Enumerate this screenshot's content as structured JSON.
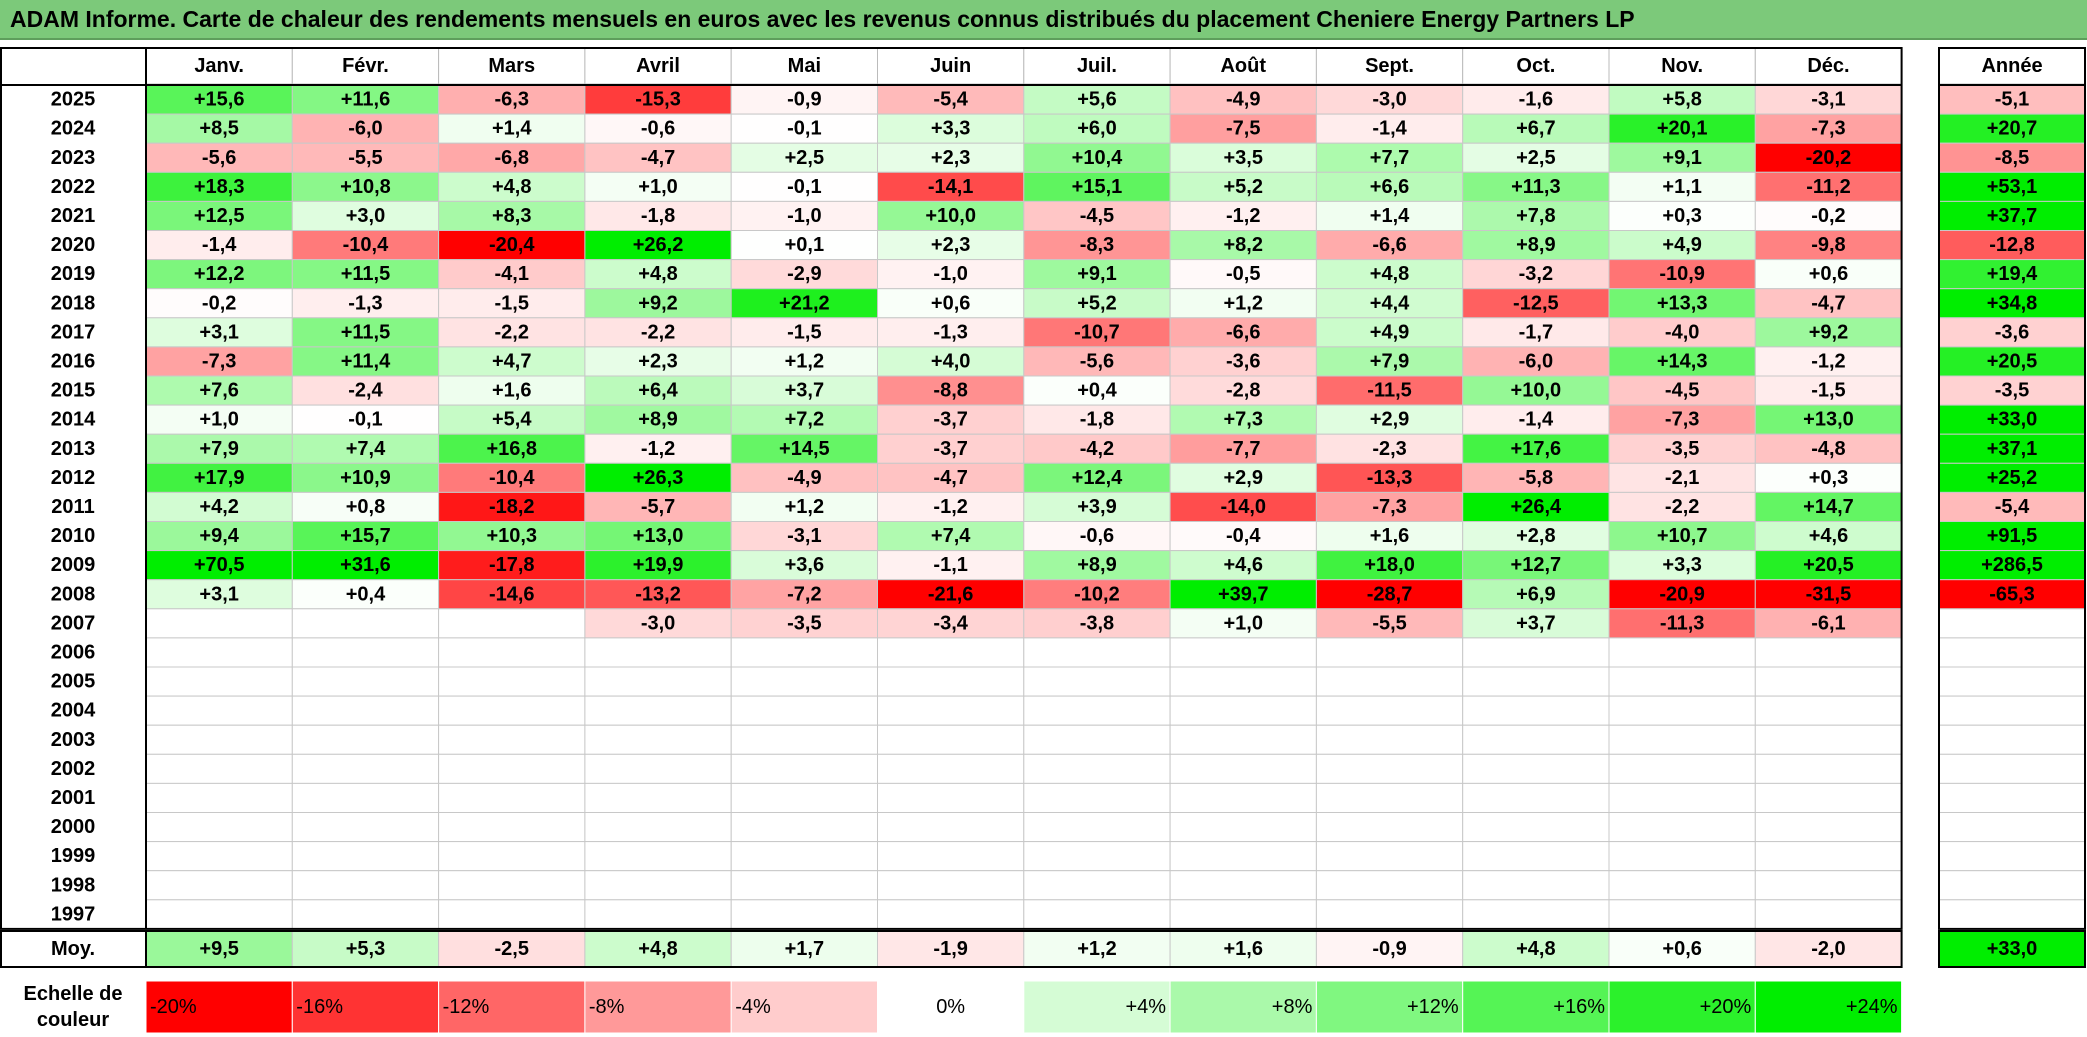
{
  "title": "ADAM Informe. Carte de chaleur des rendements mensuels en euros avec les revenus connus distribués du placement Cheniere Energy Partners LP",
  "chart_data": {
    "type": "heatmap",
    "title": "ADAM Informe. Carte de chaleur des rendements mensuels en euros avec les revenus connus distribués du placement Cheniere Energy Partners LP",
    "columns": [
      "Janv.",
      "Févr.",
      "Mars",
      "Avril",
      "Mai",
      "Juin",
      "Juil.",
      "Août",
      "Sept.",
      "Oct.",
      "Nov.",
      "Déc."
    ],
    "annual_header": "Année",
    "rows": [
      {
        "year": "2025",
        "values": [
          "+15,6",
          "+11,6",
          "-6,3",
          "-15,3",
          "-0,9",
          "-5,4",
          "+5,6",
          "-4,9",
          "-3,0",
          "-1,6",
          "+5,8",
          "-3,1"
        ],
        "annual": "-5,1"
      },
      {
        "year": "2024",
        "values": [
          "+8,5",
          "-6,0",
          "+1,4",
          "-0,6",
          "-0,1",
          "+3,3",
          "+6,0",
          "-7,5",
          "-1,4",
          "+6,7",
          "+20,1",
          "-7,3"
        ],
        "annual": "+20,7"
      },
      {
        "year": "2023",
        "values": [
          "-5,6",
          "-5,5",
          "-6,8",
          "-4,7",
          "+2,5",
          "+2,3",
          "+10,4",
          "+3,5",
          "+7,7",
          "+2,5",
          "+9,1",
          "-20,2"
        ],
        "annual": "-8,5"
      },
      {
        "year": "2022",
        "values": [
          "+18,3",
          "+10,8",
          "+4,8",
          "+1,0",
          "-0,1",
          "-14,1",
          "+15,1",
          "+5,2",
          "+6,6",
          "+11,3",
          "+1,1",
          "-11,2"
        ],
        "annual": "+53,1"
      },
      {
        "year": "2021",
        "values": [
          "+12,5",
          "+3,0",
          "+8,3",
          "-1,8",
          "-1,0",
          "+10,0",
          "-4,5",
          "-1,2",
          "+1,4",
          "+7,8",
          "+0,3",
          "-0,2"
        ],
        "annual": "+37,7"
      },
      {
        "year": "2020",
        "values": [
          "-1,4",
          "-10,4",
          "-20,4",
          "+26,2",
          "+0,1",
          "+2,3",
          "-8,3",
          "+8,2",
          "-6,6",
          "+8,9",
          "+4,9",
          "-9,8"
        ],
        "annual": "-12,8"
      },
      {
        "year": "2019",
        "values": [
          "+12,2",
          "+11,5",
          "-4,1",
          "+4,8",
          "-2,9",
          "-1,0",
          "+9,1",
          "-0,5",
          "+4,8",
          "-3,2",
          "-10,9",
          "+0,6"
        ],
        "annual": "+19,4"
      },
      {
        "year": "2018",
        "values": [
          "-0,2",
          "-1,3",
          "-1,5",
          "+9,2",
          "+21,2",
          "+0,6",
          "+5,2",
          "+1,2",
          "+4,4",
          "-12,5",
          "+13,3",
          "-4,7"
        ],
        "annual": "+34,8"
      },
      {
        "year": "2017",
        "values": [
          "+3,1",
          "+11,5",
          "-2,2",
          "-2,2",
          "-1,5",
          "-1,3",
          "-10,7",
          "-6,6",
          "+4,9",
          "-1,7",
          "-4,0",
          "+9,2"
        ],
        "annual": "-3,6"
      },
      {
        "year": "2016",
        "values": [
          "-7,3",
          "+11,4",
          "+4,7",
          "+2,3",
          "+1,2",
          "+4,0",
          "-5,6",
          "-3,6",
          "+7,9",
          "-6,0",
          "+14,3",
          "-1,2"
        ],
        "annual": "+20,5"
      },
      {
        "year": "2015",
        "values": [
          "+7,6",
          "-2,4",
          "+1,6",
          "+6,4",
          "+3,7",
          "-8,8",
          "+0,4",
          "-2,8",
          "-11,5",
          "+10,0",
          "-4,5",
          "-1,5"
        ],
        "annual": "-3,5"
      },
      {
        "year": "2014",
        "values": [
          "+1,0",
          "-0,1",
          "+5,4",
          "+8,9",
          "+7,2",
          "-3,7",
          "-1,8",
          "+7,3",
          "+2,9",
          "-1,4",
          "-7,3",
          "+13,0"
        ],
        "annual": "+33,0"
      },
      {
        "year": "2013",
        "values": [
          "+7,9",
          "+7,4",
          "+16,8",
          "-1,2",
          "+14,5",
          "-3,7",
          "-4,2",
          "-7,7",
          "-2,3",
          "+17,6",
          "-3,5",
          "-4,8"
        ],
        "annual": "+37,1"
      },
      {
        "year": "2012",
        "values": [
          "+17,9",
          "+10,9",
          "-10,4",
          "+26,3",
          "-4,9",
          "-4,7",
          "+12,4",
          "+2,9",
          "-13,3",
          "-5,8",
          "-2,1",
          "+0,3"
        ],
        "annual": "+25,2"
      },
      {
        "year": "2011",
        "values": [
          "+4,2",
          "+0,8",
          "-18,2",
          "-5,7",
          "+1,2",
          "-1,2",
          "+3,9",
          "-14,0",
          "-7,3",
          "+26,4",
          "-2,2",
          "+14,7"
        ],
        "annual": "-5,4"
      },
      {
        "year": "2010",
        "values": [
          "+9,4",
          "+15,7",
          "+10,3",
          "+13,0",
          "-3,1",
          "+7,4",
          "-0,6",
          "-0,4",
          "+1,6",
          "+2,8",
          "+10,7",
          "+4,6"
        ],
        "annual": "+91,5"
      },
      {
        "year": "2009",
        "values": [
          "+70,5",
          "+31,6",
          "-17,8",
          "+19,9",
          "+3,6",
          "-1,1",
          "+8,9",
          "+4,6",
          "+18,0",
          "+12,7",
          "+3,3",
          "+20,5"
        ],
        "annual": "+286,5"
      },
      {
        "year": "2008",
        "values": [
          "+3,1",
          "+0,4",
          "-14,6",
          "-13,2",
          "-7,2",
          "-21,6",
          "-10,2",
          "+39,7",
          "-28,7",
          "+6,9",
          "-20,9",
          "-31,5"
        ],
        "annual": "-65,3"
      },
      {
        "year": "2007",
        "values": [
          "",
          "",
          "",
          "-3,0",
          "-3,5",
          "-3,4",
          "-3,8",
          "+1,0",
          "-5,5",
          "+3,7",
          "-11,3",
          "-6,1"
        ],
        "annual": ""
      },
      {
        "year": "2006",
        "values": [
          "",
          "",
          "",
          "",
          "",
          "",
          "",
          "",
          "",
          "",
          "",
          ""
        ],
        "annual": ""
      },
      {
        "year": "2005",
        "values": [
          "",
          "",
          "",
          "",
          "",
          "",
          "",
          "",
          "",
          "",
          "",
          ""
        ],
        "annual": ""
      },
      {
        "year": "2004",
        "values": [
          "",
          "",
          "",
          "",
          "",
          "",
          "",
          "",
          "",
          "",
          "",
          ""
        ],
        "annual": ""
      },
      {
        "year": "2003",
        "values": [
          "",
          "",
          "",
          "",
          "",
          "",
          "",
          "",
          "",
          "",
          "",
          ""
        ],
        "annual": ""
      },
      {
        "year": "2002",
        "values": [
          "",
          "",
          "",
          "",
          "",
          "",
          "",
          "",
          "",
          "",
          "",
          ""
        ],
        "annual": ""
      },
      {
        "year": "2001",
        "values": [
          "",
          "",
          "",
          "",
          "",
          "",
          "",
          "",
          "",
          "",
          "",
          ""
        ],
        "annual": ""
      },
      {
        "year": "2000",
        "values": [
          "",
          "",
          "",
          "",
          "",
          "",
          "",
          "",
          "",
          "",
          "",
          ""
        ],
        "annual": ""
      },
      {
        "year": "1999",
        "values": [
          "",
          "",
          "",
          "",
          "",
          "",
          "",
          "",
          "",
          "",
          "",
          ""
        ],
        "annual": ""
      },
      {
        "year": "1998",
        "values": [
          "",
          "",
          "",
          "",
          "",
          "",
          "",
          "",
          "",
          "",
          "",
          ""
        ],
        "annual": ""
      },
      {
        "year": "1997",
        "values": [
          "",
          "",
          "",
          "",
          "",
          "",
          "",
          "",
          "",
          "",
          "",
          ""
        ],
        "annual": ""
      }
    ],
    "average": {
      "label": "Moy.",
      "values": [
        "+9,5",
        "+5,3",
        "-2,5",
        "+4,8",
        "+1,7",
        "-1,9",
        "+1,2",
        "+1,6",
        "-0,9",
        "+4,8",
        "+0,6",
        "-2,0"
      ],
      "annual": "+33,0"
    },
    "scale": {
      "label_lines": [
        "Echelle de",
        "couleur"
      ],
      "steps": [
        "-20%",
        "-16%",
        "-12%",
        "-8%",
        "-4%",
        "0%",
        "+4%",
        "+8%",
        "+12%",
        "+16%",
        "+20%",
        "+24%"
      ],
      "step_values": [
        -20,
        -16,
        -12,
        -8,
        -4,
        0,
        4,
        8,
        12,
        16,
        20,
        24
      ]
    },
    "colors": {
      "negative": "#ff0000",
      "positive": "#00ee00",
      "neutral": "#ffffff",
      "title_bar": "#7cc97a"
    }
  }
}
